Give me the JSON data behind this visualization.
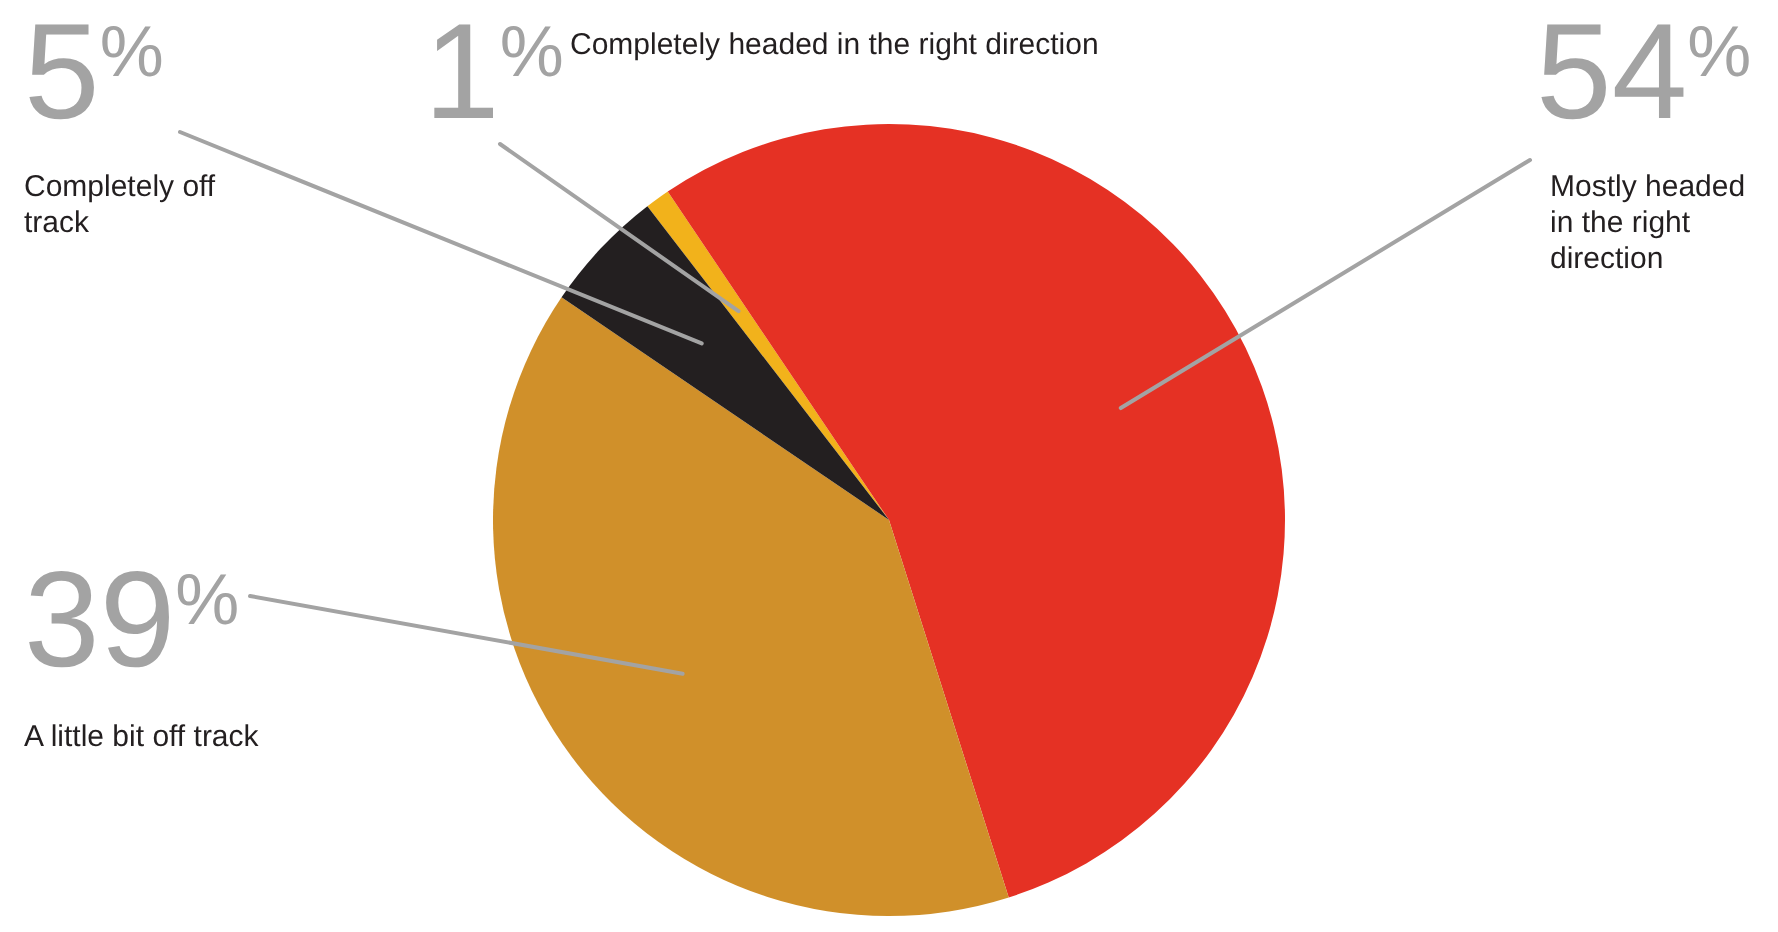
{
  "chart_data": {
    "type": "pie",
    "categories": [
      "Completely headed in the right direction",
      "Mostly headed in the right direction",
      "A little bit off track",
      "Completely off track"
    ],
    "values": [
      1,
      54,
      39,
      5
    ],
    "value_labels": [
      "1%",
      "54%",
      "39%",
      "5%"
    ],
    "colors": [
      "#f2b21b",
      "#e53124",
      "#d0902a",
      "#231f20"
    ],
    "legend": false
  }
}
